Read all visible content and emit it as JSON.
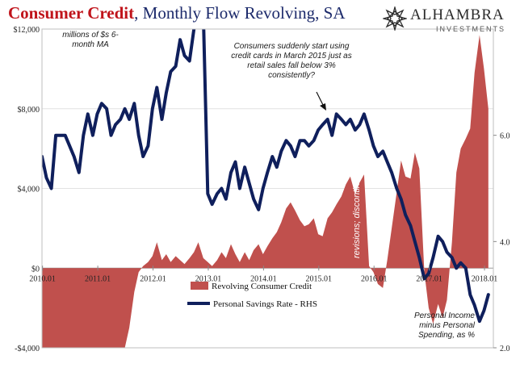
{
  "title": {
    "bold": "Consumer Credit",
    "rest": ", Monthly Flow Revolving, SA"
  },
  "logo": {
    "name": "ALHAMBRA",
    "sub": "INVESTMENTS",
    "icon": "compass-star-icon"
  },
  "colors": {
    "credit_fill": "#c0504d",
    "savings_line": "#0f1f5c",
    "title_red": "#c0141b",
    "title_blue": "#1c2a6b"
  },
  "chart_data": {
    "type": "area",
    "title": "Consumer Credit, Monthly Flow Revolving, SA",
    "x_ticks": [
      "2010.01",
      "2011.01",
      "2012.01",
      "2013.01",
      "2014.01",
      "2015.01",
      "2016.01",
      "2017.01",
      "2018.01"
    ],
    "x_start": 2010.0,
    "x_end": 2018.17,
    "y_left": {
      "min": -4000,
      "max": 12000,
      "ticks": [
        -4000,
        0,
        4000,
        8000,
        12000
      ],
      "tick_labels": [
        "-$4,000",
        "$0",
        "$4,000",
        "$8,000",
        "$12,000"
      ],
      "unit_note": "millions of $s 6- month MA"
    },
    "y_right": {
      "min": 2.0,
      "max": 8.0,
      "ticks": [
        2.0,
        4.0,
        6.0
      ],
      "tick_labels": [
        "2.0",
        "4.0",
        "6.0"
      ]
    },
    "legend": {
      "placement": "bottom-center",
      "items": [
        "Revolving Consumer Credit",
        "Personal Savings Rate - RHS"
      ]
    },
    "annotations": {
      "march_2015": "Consumers suddenly start using credit cards in March 2015 just as retail sales fall below 3% consistently?",
      "revisions": "revisions; discontinuity",
      "income_note": "Personal Income minus Personal Spending, as %"
    },
    "series": [
      {
        "name": "Revolving Consumer Credit",
        "axis": "left",
        "points": [
          [
            2010.0,
            -4000
          ],
          [
            2011.5,
            -4000
          ],
          [
            2011.58,
            -3000
          ],
          [
            2011.67,
            -1200
          ],
          [
            2011.75,
            -200
          ],
          [
            2011.83,
            100
          ],
          [
            2011.92,
            300
          ],
          [
            2012.0,
            600
          ],
          [
            2012.08,
            1300
          ],
          [
            2012.17,
            400
          ],
          [
            2012.25,
            700
          ],
          [
            2012.33,
            300
          ],
          [
            2012.42,
            600
          ],
          [
            2012.5,
            400
          ],
          [
            2012.58,
            200
          ],
          [
            2012.67,
            500
          ],
          [
            2012.75,
            800
          ],
          [
            2012.83,
            1300
          ],
          [
            2012.92,
            500
          ],
          [
            2013.0,
            300
          ],
          [
            2013.08,
            100
          ],
          [
            2013.17,
            400
          ],
          [
            2013.25,
            800
          ],
          [
            2013.33,
            500
          ],
          [
            2013.42,
            1200
          ],
          [
            2013.5,
            700
          ],
          [
            2013.58,
            300
          ],
          [
            2013.67,
            800
          ],
          [
            2013.75,
            400
          ],
          [
            2013.83,
            900
          ],
          [
            2013.92,
            1200
          ],
          [
            2014.0,
            700
          ],
          [
            2014.08,
            1100
          ],
          [
            2014.17,
            1500
          ],
          [
            2014.25,
            1800
          ],
          [
            2014.33,
            2300
          ],
          [
            2014.42,
            3000
          ],
          [
            2014.5,
            3300
          ],
          [
            2014.58,
            2900
          ],
          [
            2014.67,
            2400
          ],
          [
            2014.75,
            2100
          ],
          [
            2014.83,
            2200
          ],
          [
            2014.92,
            2500
          ],
          [
            2015.0,
            1700
          ],
          [
            2015.08,
            1600
          ],
          [
            2015.17,
            2500
          ],
          [
            2015.25,
            2800
          ],
          [
            2015.33,
            3200
          ],
          [
            2015.42,
            3600
          ],
          [
            2015.5,
            4200
          ],
          [
            2015.58,
            4600
          ],
          [
            2015.67,
            3700
          ],
          [
            2015.75,
            4300
          ],
          [
            2015.83,
            4700
          ],
          [
            2015.92,
            100
          ],
          [
            2016.0,
            -200
          ],
          [
            2016.08,
            -800
          ],
          [
            2016.17,
            -1000
          ],
          [
            2016.25,
            400
          ],
          [
            2016.33,
            2000
          ],
          [
            2016.42,
            3800
          ],
          [
            2016.5,
            5400
          ],
          [
            2016.58,
            4600
          ],
          [
            2016.67,
            4500
          ],
          [
            2016.75,
            5800
          ],
          [
            2016.83,
            5000
          ],
          [
            2016.92,
            -200
          ],
          [
            2017.0,
            -2000
          ],
          [
            2017.08,
            -2800
          ],
          [
            2017.17,
            -1800
          ],
          [
            2017.25,
            -2500
          ],
          [
            2017.33,
            -1600
          ],
          [
            2017.42,
            1300
          ],
          [
            2017.5,
            4800
          ],
          [
            2017.58,
            6000
          ],
          [
            2017.67,
            6500
          ],
          [
            2017.75,
            7000
          ],
          [
            2017.83,
            9800
          ],
          [
            2017.92,
            11700
          ],
          [
            2018.0,
            10000
          ],
          [
            2018.08,
            8000
          ]
        ]
      },
      {
        "name": "Personal Savings Rate - RHS",
        "axis": "right",
        "points": [
          [
            2010.0,
            5.6
          ],
          [
            2010.08,
            5.2
          ],
          [
            2010.17,
            5.0
          ],
          [
            2010.25,
            6.0
          ],
          [
            2010.33,
            6.0
          ],
          [
            2010.42,
            6.0
          ],
          [
            2010.5,
            5.8
          ],
          [
            2010.58,
            5.6
          ],
          [
            2010.67,
            5.3
          ],
          [
            2010.75,
            6.0
          ],
          [
            2010.83,
            6.4
          ],
          [
            2010.92,
            6.0
          ],
          [
            2011.0,
            6.4
          ],
          [
            2011.08,
            6.6
          ],
          [
            2011.17,
            6.5
          ],
          [
            2011.25,
            6.0
          ],
          [
            2011.33,
            6.2
          ],
          [
            2011.42,
            6.3
          ],
          [
            2011.5,
            6.5
          ],
          [
            2011.58,
            6.3
          ],
          [
            2011.67,
            6.6
          ],
          [
            2011.75,
            6.0
          ],
          [
            2011.83,
            5.6
          ],
          [
            2011.92,
            5.8
          ],
          [
            2012.0,
            6.5
          ],
          [
            2012.08,
            6.9
          ],
          [
            2012.17,
            6.3
          ],
          [
            2012.25,
            6.8
          ],
          [
            2012.33,
            7.2
          ],
          [
            2012.42,
            7.3
          ],
          [
            2012.5,
            7.8
          ],
          [
            2012.58,
            7.5
          ],
          [
            2012.67,
            7.4
          ],
          [
            2012.75,
            8.0
          ],
          [
            2012.83,
            8.1
          ],
          [
            2012.92,
            8.3
          ],
          [
            2013.0,
            4.9
          ],
          [
            2013.08,
            4.7
          ],
          [
            2013.17,
            4.9
          ],
          [
            2013.25,
            5.0
          ],
          [
            2013.33,
            4.8
          ],
          [
            2013.42,
            5.3
          ],
          [
            2013.5,
            5.5
          ],
          [
            2013.58,
            5.0
          ],
          [
            2013.67,
            5.4
          ],
          [
            2013.75,
            5.1
          ],
          [
            2013.83,
            4.8
          ],
          [
            2013.92,
            4.6
          ],
          [
            2014.0,
            5.0
          ],
          [
            2014.08,
            5.3
          ],
          [
            2014.17,
            5.6
          ],
          [
            2014.25,
            5.4
          ],
          [
            2014.33,
            5.7
          ],
          [
            2014.42,
            5.9
          ],
          [
            2014.5,
            5.8
          ],
          [
            2014.58,
            5.6
          ],
          [
            2014.67,
            5.9
          ],
          [
            2014.75,
            5.9
          ],
          [
            2014.83,
            5.8
          ],
          [
            2014.92,
            5.9
          ],
          [
            2015.0,
            6.1
          ],
          [
            2015.08,
            6.2
          ],
          [
            2015.17,
            6.3
          ],
          [
            2015.25,
            6.0
          ],
          [
            2015.33,
            6.4
          ],
          [
            2015.42,
            6.3
          ],
          [
            2015.5,
            6.2
          ],
          [
            2015.58,
            6.3
          ],
          [
            2015.67,
            6.1
          ],
          [
            2015.75,
            6.2
          ],
          [
            2015.83,
            6.4
          ],
          [
            2015.92,
            6.1
          ],
          [
            2016.0,
            5.8
          ],
          [
            2016.08,
            5.6
          ],
          [
            2016.17,
            5.7
          ],
          [
            2016.25,
            5.5
          ],
          [
            2016.33,
            5.3
          ],
          [
            2016.42,
            5.0
          ],
          [
            2016.5,
            4.8
          ],
          [
            2016.58,
            4.5
          ],
          [
            2016.67,
            4.3
          ],
          [
            2016.75,
            4.0
          ],
          [
            2016.83,
            3.7
          ],
          [
            2016.92,
            3.3
          ],
          [
            2017.0,
            3.4
          ],
          [
            2017.08,
            3.7
          ],
          [
            2017.17,
            4.1
          ],
          [
            2017.25,
            4.0
          ],
          [
            2017.33,
            3.8
          ],
          [
            2017.42,
            3.7
          ],
          [
            2017.5,
            3.5
          ],
          [
            2017.58,
            3.6
          ],
          [
            2017.67,
            3.5
          ],
          [
            2017.75,
            3.0
          ],
          [
            2017.83,
            2.8
          ],
          [
            2017.92,
            2.5
          ],
          [
            2018.0,
            2.7
          ],
          [
            2018.08,
            3.0
          ]
        ]
      }
    ]
  }
}
